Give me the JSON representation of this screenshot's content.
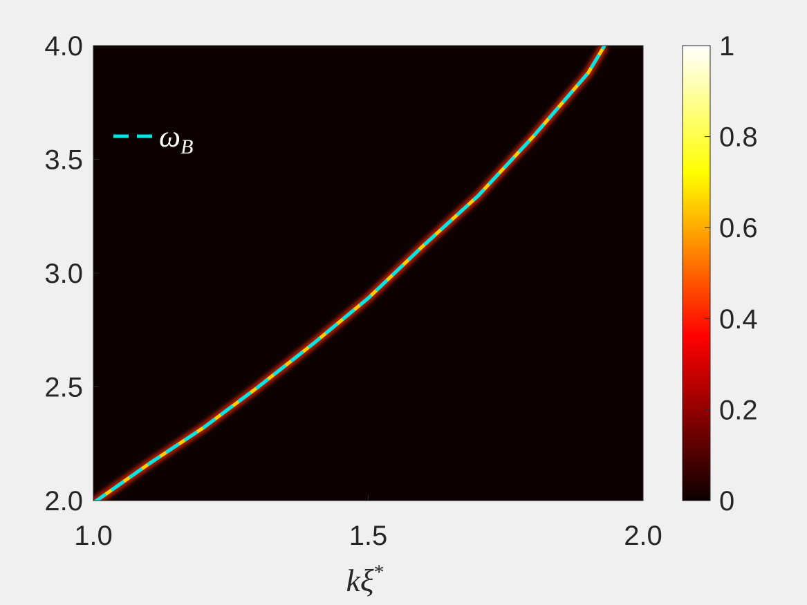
{
  "chart_data": {
    "type": "heatmap",
    "xlabel": "kξ*",
    "ylabel": "",
    "xlim": [
      1.0,
      2.0
    ],
    "ylim": [
      2.0,
      4.0
    ],
    "x_ticks": [
      "1.0",
      "1.5",
      "2.0"
    ],
    "y_ticks": [
      "2.0",
      "2.5",
      "3.0",
      "3.5",
      "4.0"
    ],
    "colorbar": {
      "colormap": "hot",
      "range": [
        0,
        1
      ],
      "ticks": [
        "0",
        "0.2",
        "0.4",
        "0.6",
        "0.8",
        "1"
      ]
    },
    "series": [
      {
        "name": "ω_B",
        "style": "dashed",
        "color": "#00e5e5",
        "x": [
          1.0,
          1.1,
          1.2,
          1.3,
          1.4,
          1.5,
          1.6,
          1.7,
          1.8,
          1.9,
          1.93
        ],
        "y": [
          1.99,
          2.16,
          2.32,
          2.5,
          2.69,
          2.89,
          3.12,
          3.34,
          3.6,
          3.88,
          4.0
        ]
      }
    ],
    "legend": {
      "placement": "top-left",
      "label_main": "ω",
      "label_sub": "B"
    },
    "background_color": "#0d0202",
    "ridge_color": "#ffd000"
  }
}
